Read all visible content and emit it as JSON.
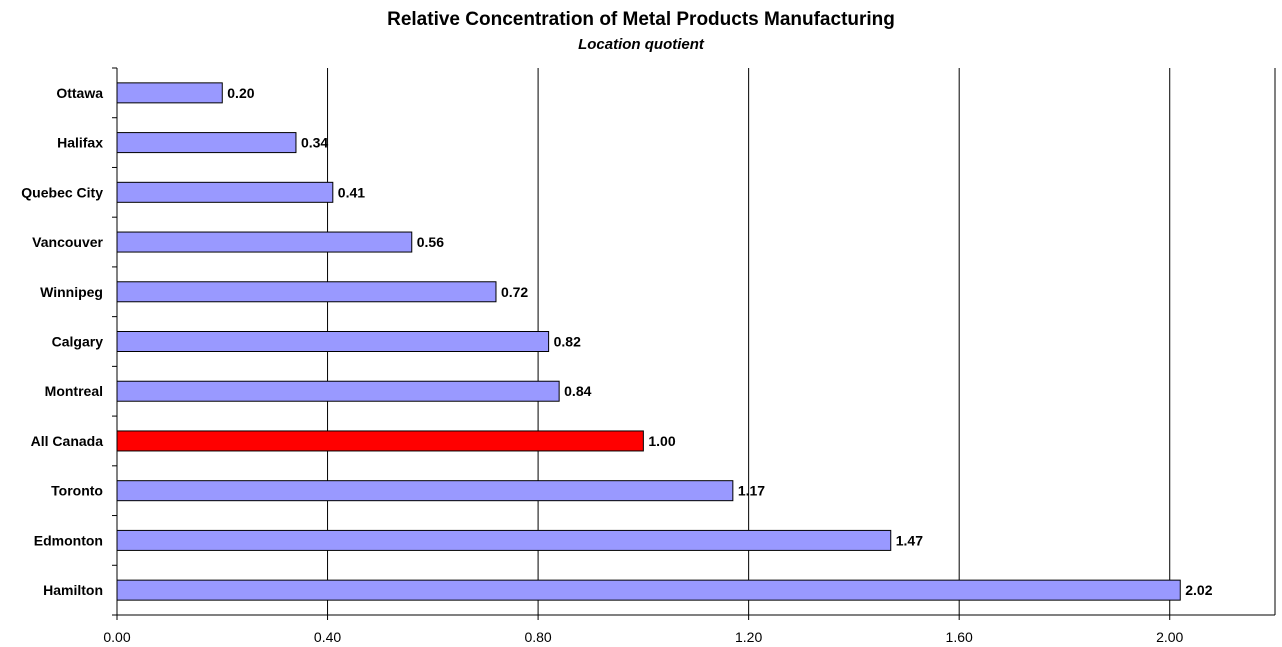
{
  "chart_data": {
    "type": "bar",
    "orientation": "horizontal",
    "title": "Relative Concentration of Metal Products Manufacturing",
    "subtitle": "Location quotient",
    "categories": [
      "Ottawa",
      "Halifax",
      "Quebec City",
      "Vancouver",
      "Winnipeg",
      "Calgary",
      "Montreal",
      "All Canada",
      "Toronto",
      "Edmonton",
      "Hamilton"
    ],
    "values": [
      0.2,
      0.34,
      0.41,
      0.56,
      0.72,
      0.82,
      0.84,
      1.0,
      1.17,
      1.47,
      2.02
    ],
    "data_labels": [
      "0.20",
      "0.34",
      "0.41",
      "0.56",
      "0.72",
      "0.82",
      "0.84",
      "1.00",
      "1.17",
      "1.47",
      "2.02"
    ],
    "xticks": [
      "0.00",
      "0.40",
      "0.80",
      "1.20",
      "1.60",
      "2.00"
    ],
    "tick_values": [
      0,
      0.4,
      0.8,
      1.2,
      1.6,
      2.0
    ],
    "xlim": [
      0,
      2.2
    ],
    "grid": "vertical",
    "legend": "none",
    "colors": {
      "bar": "#9999ff",
      "highlight": "#ff0000",
      "highlight_category": "All Canada",
      "border": "#000000",
      "grid": "#000000"
    }
  }
}
